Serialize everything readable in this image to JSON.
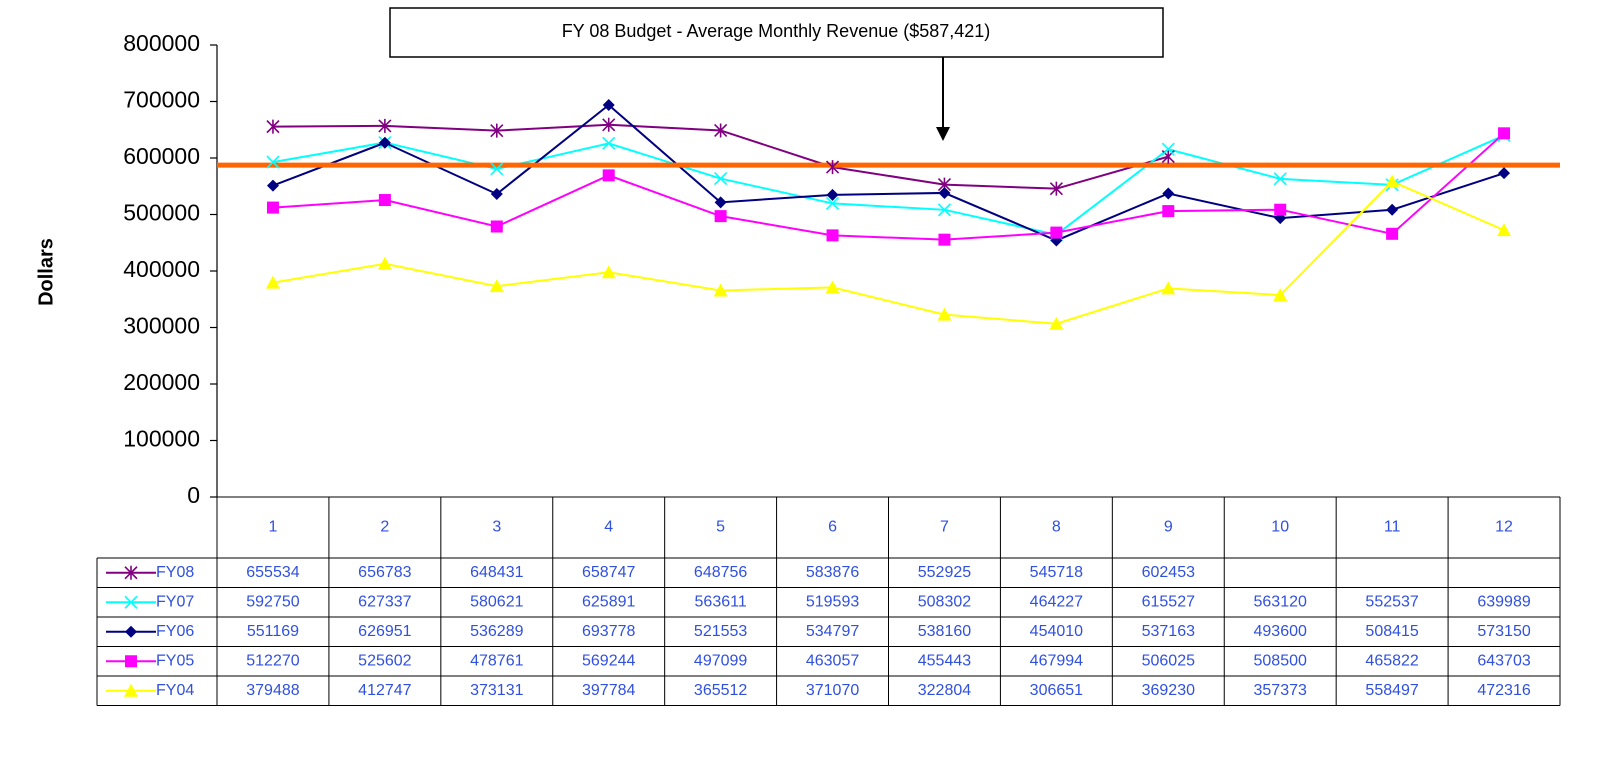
{
  "chart_data": {
    "type": "line",
    "y_axis_label": "Dollars",
    "categories": [
      "1",
      "2",
      "3",
      "4",
      "5",
      "6",
      "7",
      "8",
      "9",
      "10",
      "11",
      "12"
    ],
    "ylim": [
      0,
      800000
    ],
    "yticks": [
      0,
      100000,
      200000,
      300000,
      400000,
      500000,
      600000,
      700000,
      800000
    ],
    "reference_line": {
      "value": 587421,
      "label": "FY 08 Budget - Average Monthly Revenue ($587,421)",
      "color": "#ff6600"
    },
    "series": [
      {
        "name": "FY08",
        "color": "#800080",
        "marker": "star",
        "values": [
          655534,
          656783,
          648431,
          658747,
          648756,
          583876,
          552925,
          545718,
          602453,
          null,
          null,
          null
        ]
      },
      {
        "name": "FY07",
        "color": "#00ffff",
        "marker": "x",
        "values": [
          592750,
          627337,
          580621,
          625891,
          563611,
          519593,
          508302,
          464227,
          615527,
          563120,
          552537,
          639989
        ]
      },
      {
        "name": "FY06",
        "color": "#000080",
        "marker": "diamond",
        "values": [
          551169,
          626951,
          536289,
          693778,
          521553,
          534797,
          538160,
          454010,
          537163,
          493600,
          508415,
          573150
        ]
      },
      {
        "name": "FY05",
        "color": "#ff00ff",
        "marker": "square",
        "values": [
          512270,
          525602,
          478761,
          569244,
          497099,
          463057,
          455443,
          467994,
          506025,
          508500,
          465822,
          643703
        ]
      },
      {
        "name": "FY04",
        "color": "#ffff00",
        "marker": "triangle",
        "values": [
          379488,
          412747,
          373131,
          397784,
          365512,
          371070,
          322804,
          306651,
          369230,
          357373,
          558497,
          472316
        ]
      }
    ]
  }
}
